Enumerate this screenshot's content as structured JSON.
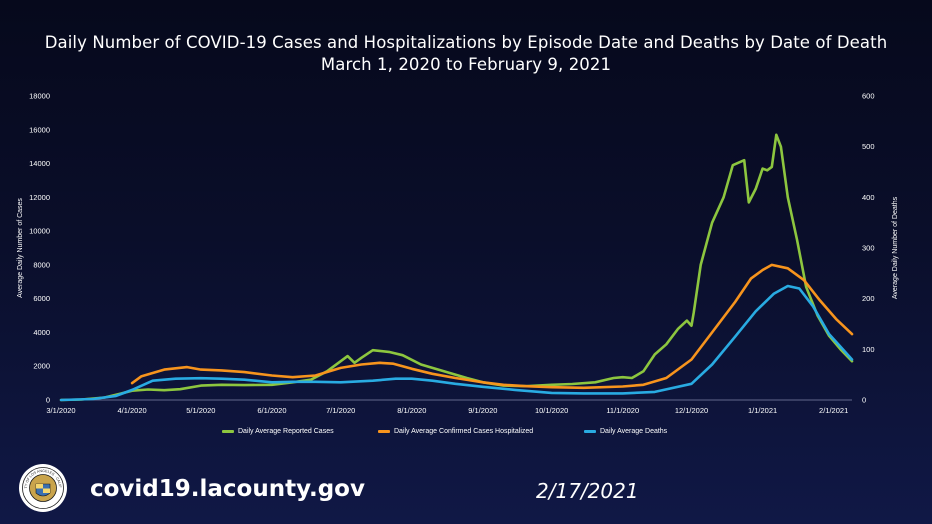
{
  "header": {
    "title": "Daily Number of COVID-19 Cases and Hospitalizations by Episode Date and Deaths by Date of Death",
    "subtitle": "March 1, 2020 to February 9, 2021"
  },
  "footer": {
    "url": "covid19.lacounty.gov",
    "date": "2/17/2021",
    "seal_icon": "la-county-seal-icon",
    "seal_text": "COUNTY OF LOS ANGELES · CALIFORNIA"
  },
  "chart_data": {
    "type": "line",
    "title": "Daily Number of COVID-19 Cases and Hospitalizations by Episode Date and Deaths by Date of Death",
    "subtitle": "March 1, 2020 to February 9, 2021",
    "xlabel": "",
    "ylabel_left": "Average Daily Number of Cases",
    "ylabel_right": "Average Daily Number of Deaths",
    "ylim_left": [
      0,
      18000
    ],
    "ylim_right": [
      0,
      600
    ],
    "xlim": [
      "2020-03-01",
      "2021-02-09"
    ],
    "yticks_left": [
      "0",
      "2000",
      "4000",
      "6000",
      "8000",
      "10000",
      "12000",
      "14000",
      "16000",
      "18000"
    ],
    "yticks_right": [
      "0",
      "100",
      "200",
      "300",
      "400",
      "500",
      "600"
    ],
    "xticks": [
      {
        "date": "2020-03-01",
        "label": "3/1/2020"
      },
      {
        "date": "2020-04-01",
        "label": "4/1/2020"
      },
      {
        "date": "2020-05-01",
        "label": "5/1/2020"
      },
      {
        "date": "2020-06-01",
        "label": "6/1/2020"
      },
      {
        "date": "2020-07-01",
        "label": "7/1/2020"
      },
      {
        "date": "2020-08-01",
        "label": "8/1/2020"
      },
      {
        "date": "2020-09-01",
        "label": "9/1/2020"
      },
      {
        "date": "2020-10-01",
        "label": "10/1/2020"
      },
      {
        "date": "2020-11-01",
        "label": "11/1/2020"
      },
      {
        "date": "2020-12-01",
        "label": "12/1/2020"
      },
      {
        "date": "2021-01-01",
        "label": "1/1/2021"
      },
      {
        "date": "2021-02-01",
        "label": "2/1/2021"
      }
    ],
    "grid": false,
    "legend_position": "bottom",
    "series": [
      {
        "name": "Daily Average Reported Cases",
        "color": "#8dc63f",
        "axis": "left",
        "points": [
          [
            "2020-03-01",
            0
          ],
          [
            "2020-03-10",
            30
          ],
          [
            "2020-03-20",
            150
          ],
          [
            "2020-03-27",
            380
          ],
          [
            "2020-04-01",
            550
          ],
          [
            "2020-04-08",
            620
          ],
          [
            "2020-04-15",
            580
          ],
          [
            "2020-04-22",
            640
          ],
          [
            "2020-05-01",
            850
          ],
          [
            "2020-05-10",
            900
          ],
          [
            "2020-05-20",
            880
          ],
          [
            "2020-06-01",
            900
          ],
          [
            "2020-06-10",
            1050
          ],
          [
            "2020-06-18",
            1200
          ],
          [
            "2020-06-25",
            1700
          ],
          [
            "2020-07-01",
            2300
          ],
          [
            "2020-07-04",
            2600
          ],
          [
            "2020-07-07",
            2200
          ],
          [
            "2020-07-10",
            2500
          ],
          [
            "2020-07-15",
            2950
          ],
          [
            "2020-07-22",
            2850
          ],
          [
            "2020-07-28",
            2650
          ],
          [
            "2020-08-05",
            2100
          ],
          [
            "2020-08-15",
            1700
          ],
          [
            "2020-08-25",
            1300
          ],
          [
            "2020-09-01",
            1050
          ],
          [
            "2020-09-10",
            850
          ],
          [
            "2020-09-20",
            820
          ],
          [
            "2020-10-01",
            900
          ],
          [
            "2020-10-10",
            950
          ],
          [
            "2020-10-20",
            1050
          ],
          [
            "2020-10-28",
            1300
          ],
          [
            "2020-11-01",
            1350
          ],
          [
            "2020-11-05",
            1300
          ],
          [
            "2020-11-10",
            1700
          ],
          [
            "2020-11-15",
            2700
          ],
          [
            "2020-11-20",
            3300
          ],
          [
            "2020-11-25",
            4200
          ],
          [
            "2020-11-29",
            4700
          ],
          [
            "2020-12-01",
            4400
          ],
          [
            "2020-12-02",
            5200
          ],
          [
            "2020-12-05",
            8000
          ],
          [
            "2020-12-10",
            10500
          ],
          [
            "2020-12-15",
            12000
          ],
          [
            "2020-12-19",
            13900
          ],
          [
            "2020-12-24",
            14200
          ],
          [
            "2020-12-26",
            11700
          ],
          [
            "2020-12-29",
            12500
          ],
          [
            "2021-01-01",
            13700
          ],
          [
            "2021-01-03",
            13600
          ],
          [
            "2021-01-05",
            13800
          ],
          [
            "2021-01-07",
            15700
          ],
          [
            "2021-01-09",
            15000
          ],
          [
            "2021-01-12",
            12000
          ],
          [
            "2021-01-16",
            9500
          ],
          [
            "2021-01-20",
            6700
          ],
          [
            "2021-01-25",
            5000
          ],
          [
            "2021-01-30",
            3800
          ],
          [
            "2021-02-04",
            3000
          ],
          [
            "2021-02-09",
            2300
          ]
        ]
      },
      {
        "name": "Daily Average Confirmed Cases Hospitalized",
        "color": "#f7941d",
        "axis": "left",
        "points": [
          [
            "2020-04-01",
            1000
          ],
          [
            "2020-04-05",
            1400
          ],
          [
            "2020-04-10",
            1600
          ],
          [
            "2020-04-15",
            1800
          ],
          [
            "2020-04-25",
            1950
          ],
          [
            "2020-05-01",
            1800
          ],
          [
            "2020-05-10",
            1750
          ],
          [
            "2020-05-20",
            1650
          ],
          [
            "2020-06-01",
            1450
          ],
          [
            "2020-06-10",
            1350
          ],
          [
            "2020-06-20",
            1450
          ],
          [
            "2020-07-01",
            1900
          ],
          [
            "2020-07-10",
            2100
          ],
          [
            "2020-07-18",
            2200
          ],
          [
            "2020-07-24",
            2150
          ],
          [
            "2020-08-01",
            1850
          ],
          [
            "2020-08-10",
            1550
          ],
          [
            "2020-08-20",
            1300
          ],
          [
            "2020-09-01",
            1050
          ],
          [
            "2020-09-10",
            900
          ],
          [
            "2020-09-20",
            820
          ],
          [
            "2020-10-01",
            760
          ],
          [
            "2020-10-15",
            720
          ],
          [
            "2020-11-01",
            800
          ],
          [
            "2020-11-10",
            900
          ],
          [
            "2020-11-20",
            1300
          ],
          [
            "2020-12-01",
            2400
          ],
          [
            "2020-12-10",
            4000
          ],
          [
            "2020-12-20",
            5800
          ],
          [
            "2020-12-27",
            7200
          ],
          [
            "2021-01-01",
            7700
          ],
          [
            "2021-01-05",
            8000
          ],
          [
            "2021-01-12",
            7800
          ],
          [
            "2021-01-19",
            7100
          ],
          [
            "2021-01-26",
            5900
          ],
          [
            "2021-02-02",
            4800
          ],
          [
            "2021-02-09",
            3900
          ]
        ]
      },
      {
        "name": "Daily Average Deaths",
        "color": "#29abe2",
        "axis": "right",
        "points": [
          [
            "2020-03-01",
            0
          ],
          [
            "2020-03-15",
            2
          ],
          [
            "2020-03-25",
            8
          ],
          [
            "2020-04-01",
            20
          ],
          [
            "2020-04-10",
            38
          ],
          [
            "2020-04-20",
            42
          ],
          [
            "2020-05-01",
            43
          ],
          [
            "2020-05-10",
            42
          ],
          [
            "2020-05-20",
            40
          ],
          [
            "2020-06-01",
            35
          ],
          [
            "2020-06-10",
            36
          ],
          [
            "2020-06-20",
            36
          ],
          [
            "2020-07-01",
            35
          ],
          [
            "2020-07-15",
            38
          ],
          [
            "2020-07-25",
            42
          ],
          [
            "2020-08-01",
            42
          ],
          [
            "2020-08-10",
            38
          ],
          [
            "2020-08-20",
            32
          ],
          [
            "2020-09-01",
            26
          ],
          [
            "2020-09-15",
            20
          ],
          [
            "2020-10-01",
            14
          ],
          [
            "2020-10-15",
            13
          ],
          [
            "2020-11-01",
            13
          ],
          [
            "2020-11-15",
            16
          ],
          [
            "2020-12-01",
            32
          ],
          [
            "2020-12-10",
            70
          ],
          [
            "2020-12-20",
            125
          ],
          [
            "2020-12-29",
            175
          ],
          [
            "2021-01-06",
            210
          ],
          [
            "2021-01-12",
            225
          ],
          [
            "2021-01-17",
            220
          ],
          [
            "2021-01-23",
            185
          ],
          [
            "2021-01-30",
            130
          ],
          [
            "2021-02-05",
            100
          ],
          [
            "2021-02-09",
            80
          ]
        ]
      }
    ]
  }
}
